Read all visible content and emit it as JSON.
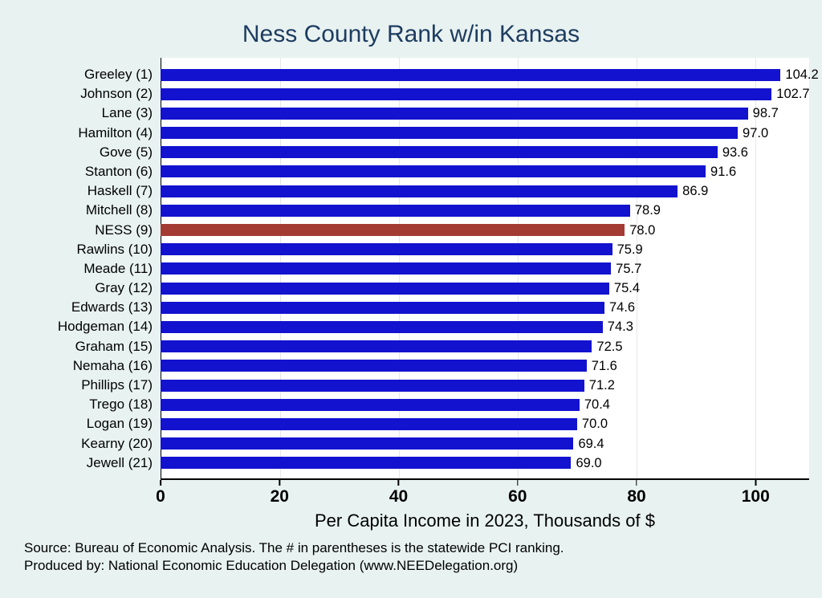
{
  "title": "Ness County Rank w/in Kansas",
  "chart_data": {
    "type": "bar",
    "orientation": "horizontal",
    "title": "Ness County Rank w/in Kansas",
    "categories": [
      "Greeley (1)",
      "Johnson (2)",
      "Lane (3)",
      "Hamilton (4)",
      "Gove (5)",
      "Stanton (6)",
      "Haskell (7)",
      "Mitchell (8)",
      "NESS (9)",
      "Rawlins (10)",
      "Meade (11)",
      "Gray (12)",
      "Edwards (13)",
      "Hodgeman (14)",
      "Graham (15)",
      "Nemaha (16)",
      "Phillips (17)",
      "Trego (18)",
      "Logan (19)",
      "Kearny (20)",
      "Jewell (21)"
    ],
    "values": [
      104.2,
      102.7,
      98.7,
      97.0,
      93.6,
      91.6,
      86.9,
      78.9,
      78.0,
      75.9,
      75.7,
      75.4,
      74.6,
      74.3,
      72.5,
      71.6,
      71.2,
      70.4,
      70.0,
      69.4,
      69.0
    ],
    "highlight_index": 8,
    "bar_color": "#1212cf",
    "highlight_color": "#a33b33",
    "xlabel": "Per Capita Income in 2023, Thousands of $",
    "ylabel": "",
    "xticks": [
      0,
      20,
      40,
      60,
      80,
      100
    ],
    "xlim": [
      0,
      109
    ],
    "grid": true,
    "legend": "none",
    "value_label_decimals": 1
  },
  "footer": {
    "line1": "Source: Bureau of Economic Analysis. The # in parentheses is the statewide PCI ranking.",
    "line2": "Produced by: National Economic Education Delegation (www.NEEDelegation.org)"
  },
  "colors": {
    "background": "#e8f2f1",
    "plot_background": "#ffffff",
    "title": "#1e3c60",
    "bar": "#1212cf",
    "highlight": "#a33b33"
  }
}
